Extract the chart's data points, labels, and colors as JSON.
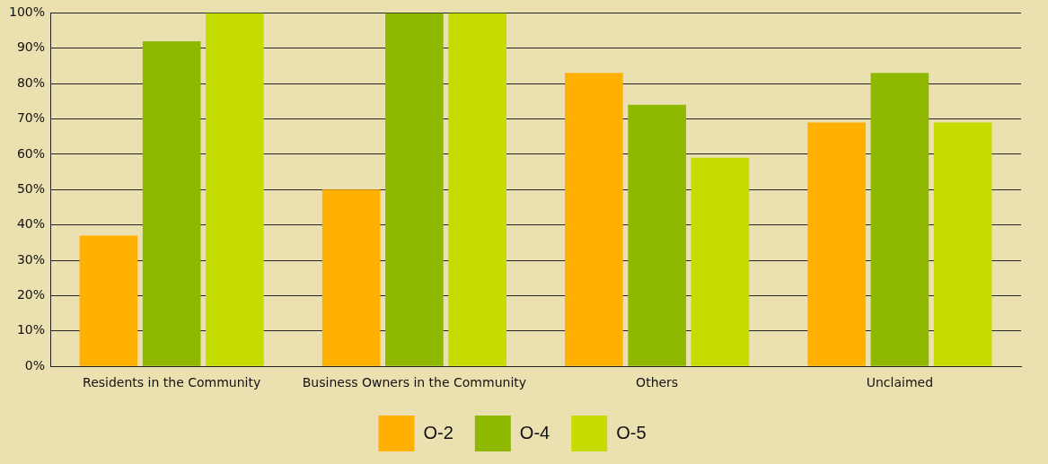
{
  "chart_data": {
    "type": "bar",
    "categories": [
      "Residents in the Community",
      "Business Owners in the Community",
      "Others",
      "Unclaimed"
    ],
    "series": [
      {
        "name": "O-2",
        "color": "#ffb000",
        "values": [
          37,
          50,
          83,
          69
        ]
      },
      {
        "name": "O-4",
        "color": "#8fb800",
        "values": [
          92,
          100,
          74,
          83
        ]
      },
      {
        "name": "O-5",
        "color": "#c4dc00",
        "values": [
          100,
          100,
          59,
          69
        ]
      }
    ],
    "ylim": [
      0,
      100
    ],
    "yticks": [
      {
        "value": 0,
        "label": "0%"
      },
      {
        "value": 10,
        "label": "10%"
      },
      {
        "value": 20,
        "label": "20%"
      },
      {
        "value": 30,
        "label": "30%"
      },
      {
        "value": 40,
        "label": "40%"
      },
      {
        "value": 50,
        "label": "50%"
      },
      {
        "value": 60,
        "label": "60%"
      },
      {
        "value": 70,
        "label": "70%"
      },
      {
        "value": 80,
        "label": "80%"
      },
      {
        "value": 90,
        "label": "90%"
      },
      {
        "value": 100,
        "label": "100%"
      }
    ],
    "grid": "y",
    "legend": "bottom"
  }
}
